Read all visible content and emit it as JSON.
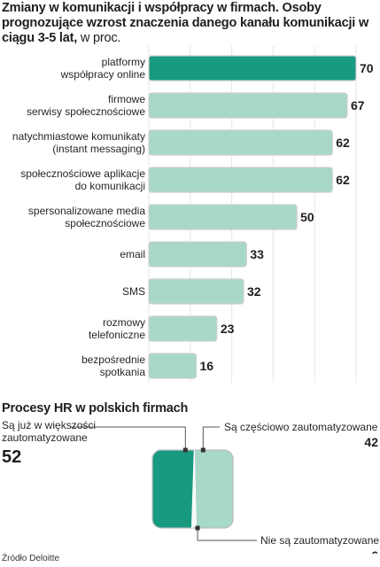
{
  "chart1": {
    "title_bold": "Zmiany w komunikacji i współpracy w firmach. Osoby prognozujące wzrost znaczenia danego kanału komunikacji w ciągu 3-5 lat,",
    "title_unit": " w proc.",
    "colors": {
      "highlight": "#179a80",
      "bar": "#a7d8c8",
      "bar_outline": "#cfcfcf",
      "grid": "#e5e5e5"
    }
  },
  "chart2": {
    "title": "Procesy HR w polskich firmach",
    "colors": {
      "dark": "#179a80",
      "light": "#a7d8c8"
    }
  },
  "source": "Źródło Deloitte",
  "chart_data": [
    {
      "type": "bar",
      "orientation": "horizontal",
      "categories": [
        [
          "platformy",
          "współpracy online"
        ],
        [
          "firmowe",
          "serwisy społecznościowe"
        ],
        [
          "natychmiastowe komunikaty",
          "(instant messaging)"
        ],
        [
          "społecznościowe aplikacje",
          "do komunikacji"
        ],
        [
          "spersonalizowane media",
          "społecznościowe"
        ],
        [
          "email"
        ],
        [
          "SMS"
        ],
        [
          "rozmowy",
          "telefoniczne"
        ],
        [
          "bezpośrednie",
          "spotkania"
        ]
      ],
      "values": [
        70,
        67,
        62,
        62,
        50,
        33,
        32,
        23,
        16
      ],
      "highlight_index": 0,
      "xlim": [
        0,
        70
      ],
      "xticks": [
        0,
        14,
        28,
        42,
        56,
        70
      ],
      "grid": true,
      "data_labels": true
    },
    {
      "type": "pie",
      "style": "rounded-rectangle",
      "slices": [
        {
          "label": [
            "Są już w większości",
            "zautomatyzowane"
          ],
          "value": 52
        },
        {
          "label": [
            "Są częściowo zautomatyzowane"
          ],
          "value": 42
        },
        {
          "label": [
            "Nie są zautomatyzowane"
          ],
          "value": 6
        }
      ]
    }
  ]
}
